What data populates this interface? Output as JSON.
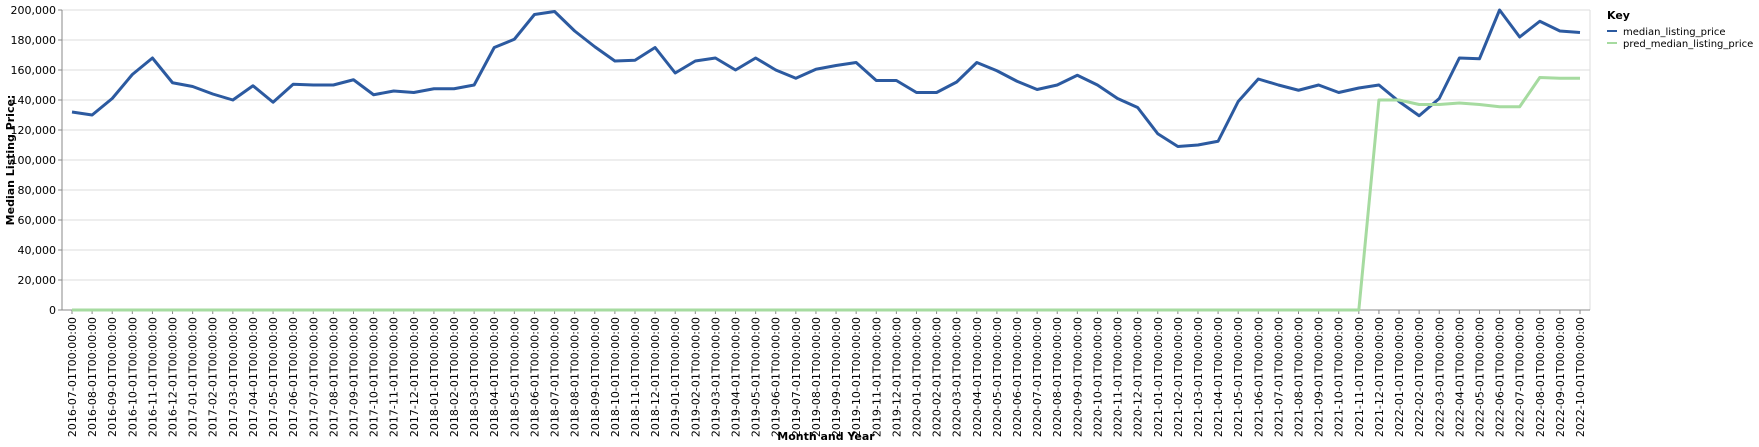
{
  "chart_data": {
    "type": "line",
    "xlabel": "Month and Year",
    "ylabel": "Median Listing Price:",
    "ylim": [
      0,
      200000
    ],
    "y_ticks": [
      0,
      20000,
      40000,
      60000,
      80000,
      100000,
      120000,
      140000,
      160000,
      180000,
      200000
    ],
    "y_tick_labels": [
      "0",
      "20,000",
      "40,000",
      "60,000",
      "80,000",
      "100,000",
      "120,000",
      "140,000",
      "160,000",
      "180,000",
      "200,000"
    ],
    "grid": true,
    "legend": {
      "title": "Key",
      "placement": "top-right"
    },
    "x": [
      "2016-07-01T00:00:00",
      "2016-08-01T00:00:00",
      "2016-09-01T00:00:00",
      "2016-10-01T00:00:00",
      "2016-11-01T00:00:00",
      "2016-12-01T00:00:00",
      "2017-01-01T00:00:00",
      "2017-02-01T00:00:00",
      "2017-03-01T00:00:00",
      "2017-04-01T00:00:00",
      "2017-05-01T00:00:00",
      "2017-06-01T00:00:00",
      "2017-07-01T00:00:00",
      "2017-08-01T00:00:00",
      "2017-09-01T00:00:00",
      "2017-10-01T00:00:00",
      "2017-11-01T00:00:00",
      "2017-12-01T00:00:00",
      "2018-01-01T00:00:00",
      "2018-02-01T00:00:00",
      "2018-03-01T00:00:00",
      "2018-04-01T00:00:00",
      "2018-05-01T00:00:00",
      "2018-06-01T00:00:00",
      "2018-07-01T00:00:00",
      "2018-08-01T00:00:00",
      "2018-09-01T00:00:00",
      "2018-10-01T00:00:00",
      "2018-11-01T00:00:00",
      "2018-12-01T00:00:00",
      "2019-01-01T00:00:00",
      "2019-02-01T00:00:00",
      "2019-03-01T00:00:00",
      "2019-04-01T00:00:00",
      "2019-05-01T00:00:00",
      "2019-06-01T00:00:00",
      "2019-07-01T00:00:00",
      "2019-08-01T00:00:00",
      "2019-09-01T00:00:00",
      "2019-10-01T00:00:00",
      "2019-11-01T00:00:00",
      "2019-12-01T00:00:00",
      "2020-01-01T00:00:00",
      "2020-02-01T00:00:00",
      "2020-03-01T00:00:00",
      "2020-04-01T00:00:00",
      "2020-05-01T00:00:00",
      "2020-06-01T00:00:00",
      "2020-07-01T00:00:00",
      "2020-08-01T00:00:00",
      "2020-09-01T00:00:00",
      "2020-10-01T00:00:00",
      "2020-11-01T00:00:00",
      "2020-12-01T00:00:00",
      "2021-01-01T00:00:00",
      "2021-02-01T00:00:00",
      "2021-03-01T00:00:00",
      "2021-04-01T00:00:00",
      "2021-05-01T00:00:00",
      "2021-06-01T00:00:00",
      "2021-07-01T00:00:00",
      "2021-08-01T00:00:00",
      "2021-09-01T00:00:00",
      "2021-10-01T00:00:00",
      "2021-11-01T00:00:00",
      "2021-12-01T00:00:00",
      "2022-01-01T00:00:00",
      "2022-02-01T00:00:00",
      "2022-03-01T00:00:00",
      "2022-04-01T00:00:00",
      "2022-05-01T00:00:00",
      "2022-06-01T00:00:00",
      "2022-07-01T00:00:00",
      "2022-08-01T00:00:00",
      "2022-09-01T00:00:00",
      "2022-10-01T00:00:00"
    ],
    "series": [
      {
        "name": "median_listing_price",
        "color": "#2c5aa0",
        "values": [
          132000,
          130000,
          141000,
          157000,
          168000,
          151500,
          149000,
          144000,
          140000,
          149500,
          138500,
          150500,
          150000,
          150000,
          153500,
          143500,
          146000,
          145000,
          147500,
          147500,
          150000,
          175000,
          180500,
          197000,
          199000,
          186000,
          175500,
          166000,
          166500,
          175000,
          158000,
          166000,
          168000,
          160000,
          168000,
          160000,
          154500,
          160500,
          163000,
          165000,
          153000,
          153000,
          145000,
          145000,
          152000,
          165000,
          159500,
          152500,
          147000,
          150000,
          156500,
          150000,
          141000,
          135000,
          117500,
          109000,
          110000,
          112500,
          139000,
          154000,
          150000,
          146500,
          150000,
          145000,
          148000,
          150000,
          139000,
          129500,
          141000,
          168000,
          167500,
          200000,
          182000,
          192500,
          186000,
          185000
        ]
      },
      {
        "name": "pred_median_listing_price",
        "color": "#a6dba0",
        "values": [
          0,
          0,
          0,
          0,
          0,
          0,
          0,
          0,
          0,
          0,
          0,
          0,
          0,
          0,
          0,
          0,
          0,
          0,
          0,
          0,
          0,
          0,
          0,
          0,
          0,
          0,
          0,
          0,
          0,
          0,
          0,
          0,
          0,
          0,
          0,
          0,
          0,
          0,
          0,
          0,
          0,
          0,
          0,
          0,
          0,
          0,
          0,
          0,
          0,
          0,
          0,
          0,
          0,
          0,
          0,
          0,
          0,
          0,
          0,
          0,
          0,
          0,
          0,
          0,
          0,
          140000,
          140000,
          137000,
          137000,
          138000,
          137000,
          135500,
          135500,
          155000,
          154500,
          154500
        ]
      }
    ]
  }
}
